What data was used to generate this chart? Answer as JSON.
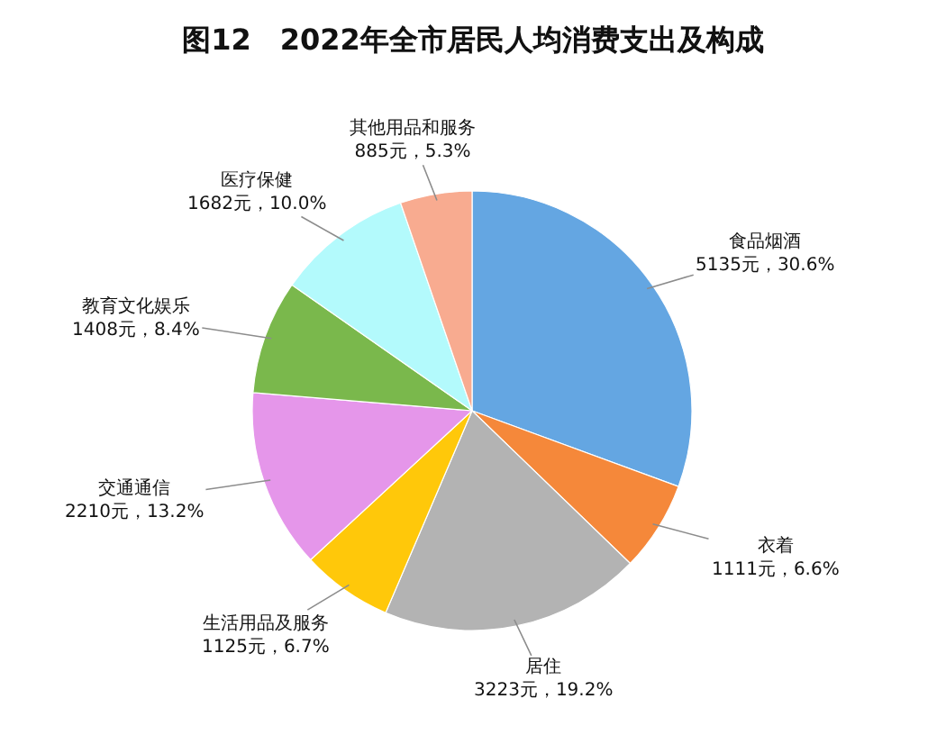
{
  "chart_data": {
    "type": "pie",
    "title": "图12　2022年全市居民人均消费支出及构成",
    "categories": [
      "食品烟酒",
      "衣着",
      "居住",
      "生活用品及服务",
      "交通通信",
      "教育文化娱乐",
      "医疗保健",
      "其他用品和服务"
    ],
    "values": [
      5135,
      1111,
      3223,
      1125,
      2210,
      1408,
      1682,
      885
    ],
    "value_labels": [
      "5135元，30.6%",
      "1111元，6.6%",
      "3223元，19.2%",
      "1125元，6.7%",
      "2210元，13.2%",
      "1408元，8.4%",
      "1682元，10.0%",
      "885元，5.3%"
    ],
    "colors": [
      "#64a6e2",
      "#f5883a",
      "#b3b3b3",
      "#ffc80a",
      "#e596ea",
      "#7ab84c",
      "#b3fafc",
      "#f8ab90"
    ]
  }
}
